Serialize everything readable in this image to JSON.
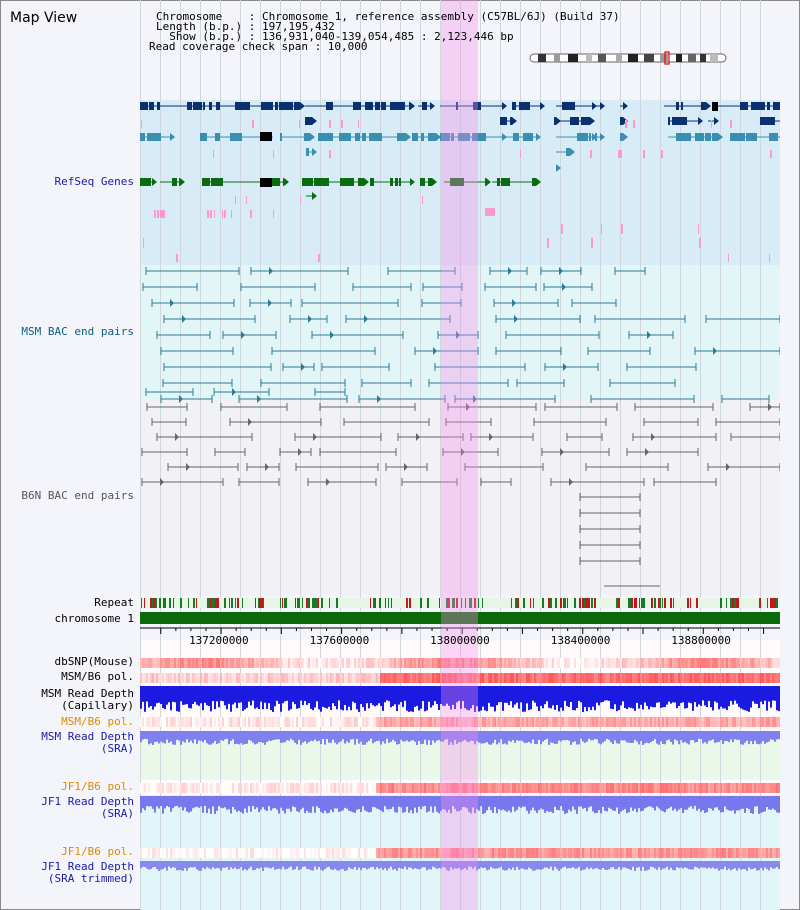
{
  "title": "Map View",
  "info": {
    "chromosome": "Chromosome    : Chromosome 1, reference assembly (C57BL/6J) (Build 37)",
    "length": "Length (b.p.) : 197,195,432",
    "show": "  Show (b.p.) : 136,931,040-139,054,485 : 2,123,446 bp",
    "coverage": "Read coverage check span : 10,000"
  },
  "labels": {
    "refseq": "RefSeq Genes",
    "msm_bac": "MSM BAC end pairs",
    "b6n_bac": "B6N BAC end pairs",
    "repeat": "Repeat",
    "chromosome": "chromosome 1",
    "dbsnp": "dbSNP(Mouse)",
    "msm_b6_pol_1": "MSM/B6 pol.",
    "msm_read_depth_cap": "MSM Read Depth\n(Capillary)",
    "msm_b6_pol_2": "MSM/B6 pol.",
    "msm_read_depth_sra": "MSM Read Depth\n(SRA)",
    "jf1_b6_pol_1": "JF1/B6 pol.",
    "jf1_read_depth_sra": "JF1 Read Depth\n(SRA)",
    "jf1_b6_pol_2": "JF1/B6 pol.",
    "jf1_read_depth_trim": "JF1 Read Depth\n(SRA trimmed)"
  },
  "axis": {
    "ticks": [
      "137200000",
      "137600000",
      "138000000",
      "138400000",
      "138800000"
    ],
    "tick_values": [
      137200000,
      137600000,
      138000000,
      138400000,
      138800000
    ],
    "start": 136931040,
    "end": 139054485
  },
  "highlight": {
    "start": 137931000,
    "end": 138052000
  },
  "colors": {
    "navy": "#0b3070",
    "teal": "#3a8fb0",
    "green": "#0b6b10",
    "pink": "#ff99cc",
    "bac_msm": "#2a7a99",
    "bac_b6n": "#666666",
    "label_blue": "#1a1aa6",
    "label_teal": "#0a5f80",
    "label_orange": "#e08a00",
    "label_b6n": "#555555"
  }
}
